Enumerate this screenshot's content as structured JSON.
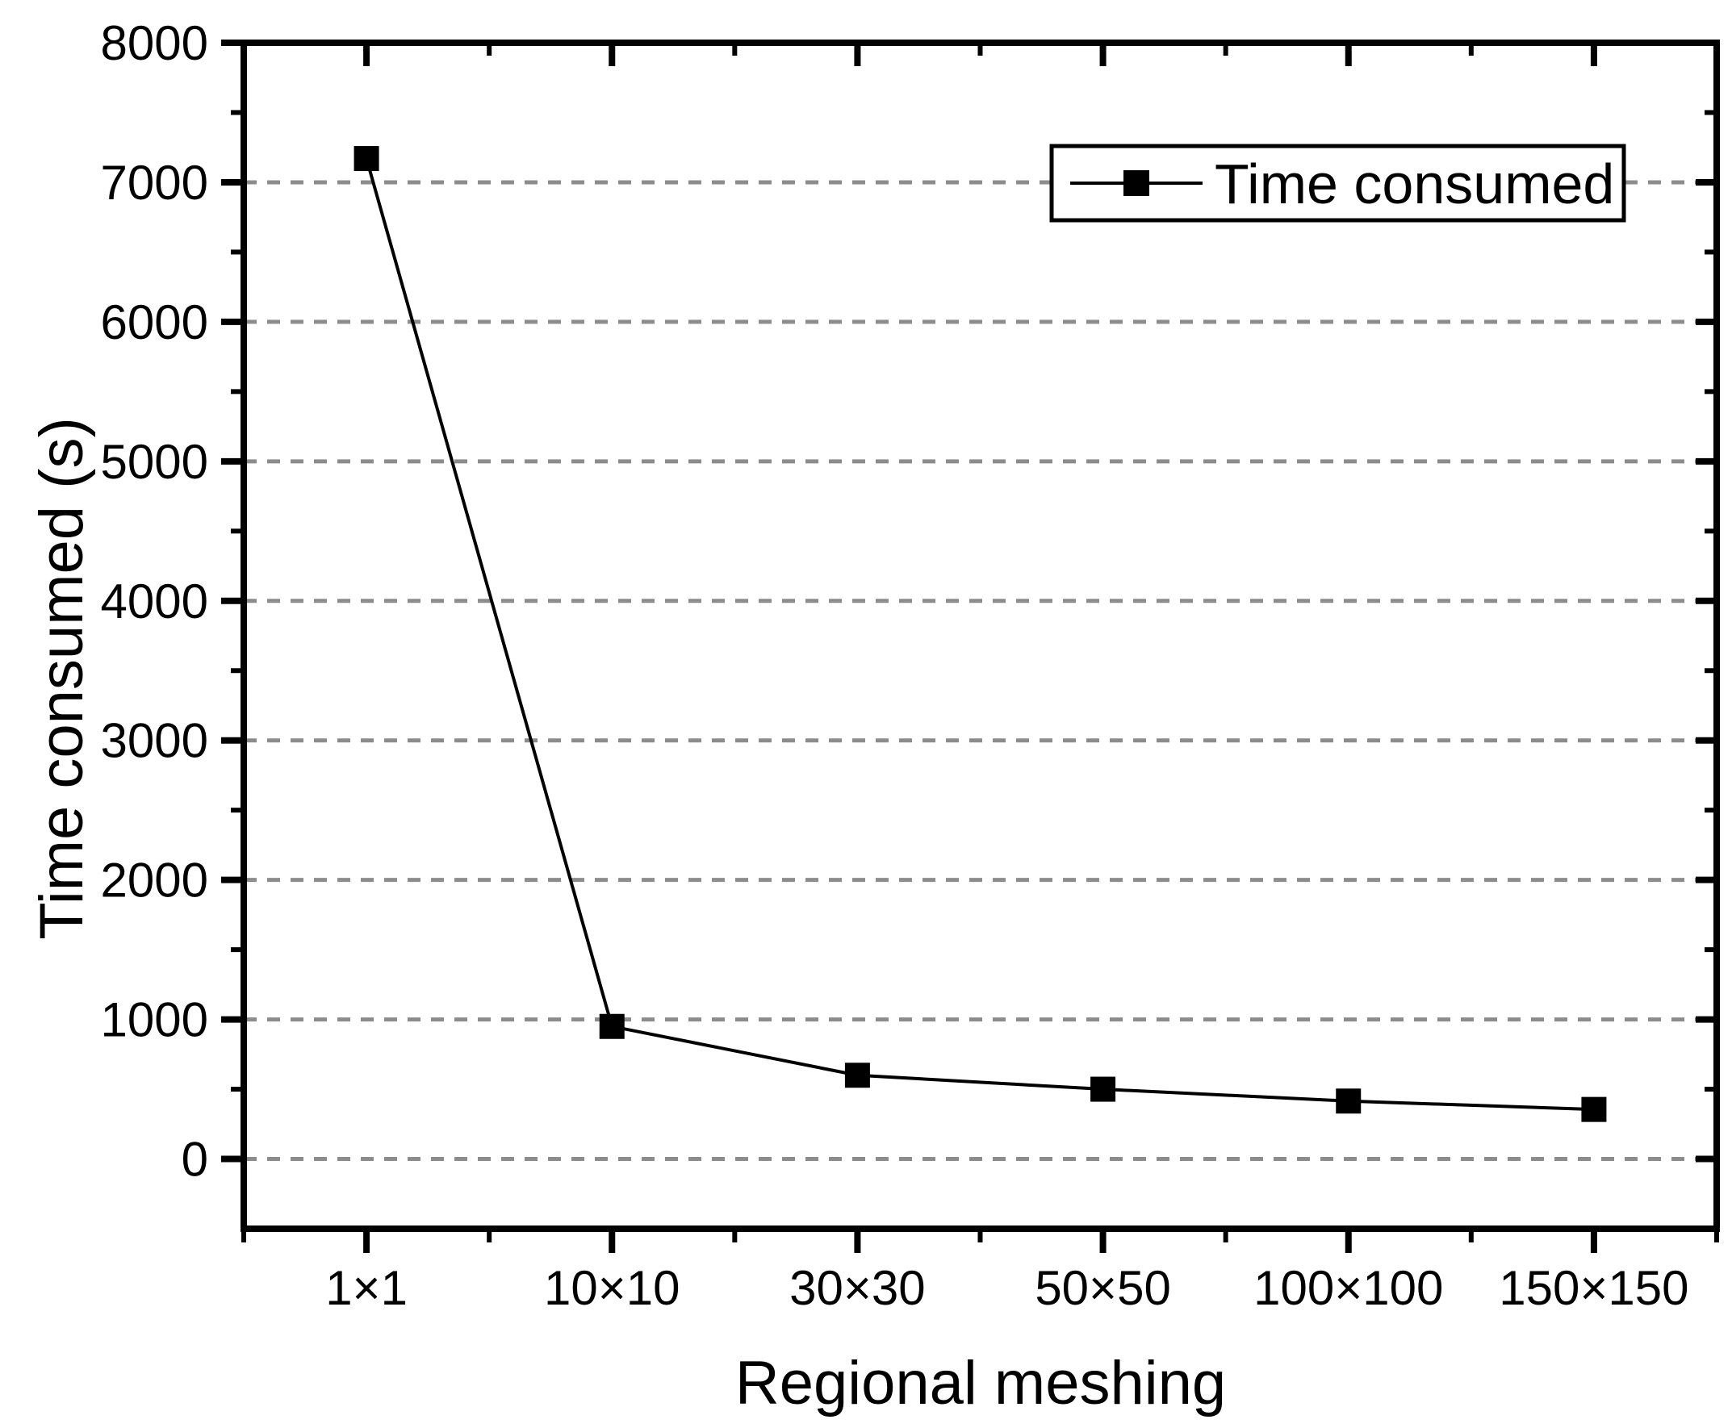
{
  "chart_data": {
    "type": "line",
    "title": "",
    "xlabel": "Regional meshing",
    "ylabel": "Time consumed (s)",
    "categories": [
      "1×1",
      "10×10",
      "30×30",
      "50×50",
      "100×100",
      "150×150"
    ],
    "series": [
      {
        "name": "Time consumed",
        "marker": "square",
        "values": [
          7170,
          950,
          600,
          500,
          415,
          355
        ]
      }
    ],
    "ylim": [
      -500,
      8000
    ],
    "ytick_interval": 1000,
    "yminor_interval": 500,
    "ytick_labels": [
      "0",
      "1000",
      "2000",
      "3000",
      "4000",
      "5000",
      "6000",
      "7000",
      "8000"
    ],
    "grid": "horizontal-dashed-major-only",
    "legend": {
      "label": "Time consumed",
      "position": "top-right"
    },
    "colors": {
      "line": "#000000",
      "marker": "#000000",
      "axis": "#000000",
      "grid": "#8c8c8c",
      "background": "#ffffff",
      "legend_background": "#ffffff"
    }
  }
}
